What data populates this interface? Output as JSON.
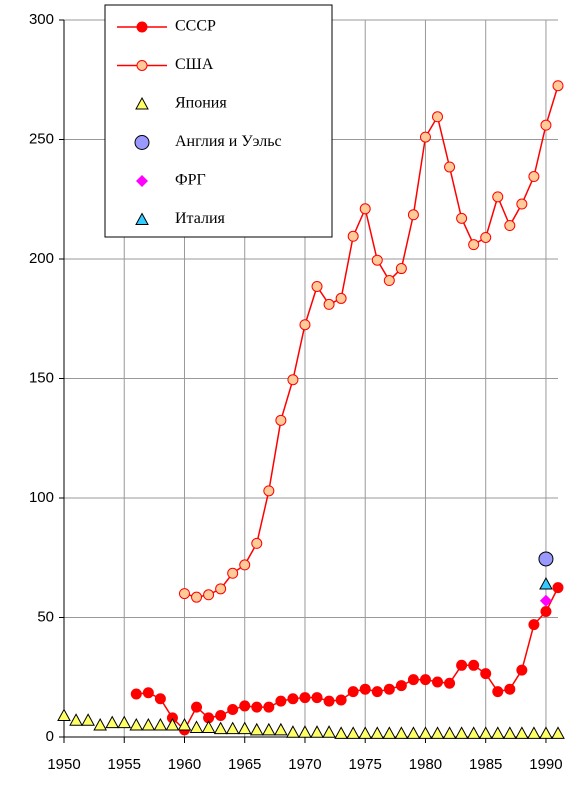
{
  "chart_data": {
    "type": "line",
    "xlim": [
      1950,
      1991
    ],
    "ylim": [
      0,
      300
    ],
    "xticks": [
      1950,
      1955,
      1960,
      1965,
      1970,
      1975,
      1980,
      1985,
      1990
    ],
    "yticks": [
      0,
      50,
      100,
      150,
      200,
      250,
      300
    ],
    "grid": true,
    "legend": "upper left",
    "series": [
      {
        "name": "СССР",
        "color": "#ff0000",
        "fill": "#ff0000",
        "marker": "circle",
        "line": true,
        "x": [
          1956,
          1957,
          1958,
          1959,
          1960,
          1961,
          1962,
          1963,
          1964,
          1965,
          1966,
          1967,
          1968,
          1969,
          1970,
          1971,
          1972,
          1973,
          1974,
          1975,
          1976,
          1977,
          1978,
          1979,
          1980,
          1981,
          1982,
          1983,
          1984,
          1985,
          1986,
          1987,
          1988,
          1989,
          1990,
          1991
        ],
        "values": [
          18,
          18.5,
          16,
          8,
          3,
          12.5,
          8,
          9,
          11.5,
          13,
          12.5,
          12.5,
          15,
          16,
          16.5,
          16.5,
          15,
          15.5,
          19,
          20,
          19,
          20,
          21.5,
          24,
          24,
          23,
          22.5,
          30,
          30,
          26.5,
          19,
          20,
          28,
          47,
          52.5,
          62.5
        ]
      },
      {
        "name": "США",
        "color": "#ff0000",
        "fill": "#ffcc99",
        "marker": "circle",
        "line": true,
        "x": [
          1960,
          1961,
          1962,
          1963,
          1964,
          1965,
          1966,
          1967,
          1968,
          1969,
          1970,
          1971,
          1972,
          1973,
          1974,
          1975,
          1976,
          1977,
          1978,
          1979,
          1980,
          1981,
          1982,
          1983,
          1984,
          1985,
          1986,
          1987,
          1988,
          1989,
          1990,
          1991
        ],
        "values": [
          60,
          58.5,
          59.5,
          62,
          68.5,
          72,
          81,
          103,
          132.5,
          149.5,
          172.5,
          188.5,
          181,
          183.5,
          209.5,
          221,
          199.5,
          191,
          196,
          218.5,
          251,
          259.5,
          238.5,
          217,
          206,
          209,
          226,
          214,
          223,
          234.5,
          256,
          272.5
        ]
      },
      {
        "name": "Япония",
        "color": "#333300",
        "fill": "#ffff66",
        "marker": "triangle",
        "line": false,
        "x": [
          1950,
          1951,
          1952,
          1953,
          1954,
          1955,
          1956,
          1957,
          1958,
          1959,
          1960,
          1961,
          1962,
          1963,
          1964,
          1965,
          1966,
          1967,
          1968,
          1969,
          1970,
          1971,
          1972,
          1973,
          1974,
          1975,
          1976,
          1977,
          1978,
          1979,
          1980,
          1981,
          1982,
          1983,
          1984,
          1985,
          1986,
          1987,
          1988,
          1989,
          1990,
          1991
        ],
        "values": [
          9,
          7,
          7,
          5,
          6,
          6,
          5,
          5,
          5,
          5,
          5,
          4,
          4,
          3.5,
          3.5,
          3.5,
          3,
          3,
          3,
          2,
          2,
          2,
          2,
          1.5,
          1.5,
          1.5,
          1.5,
          1.5,
          1.5,
          1.5,
          1.5,
          1.5,
          1.5,
          1.5,
          1.5,
          1.5,
          1.5,
          1.5,
          1.5,
          1.5,
          1.5,
          1.5
        ]
      },
      {
        "name": "Англия и Уэльс",
        "color": "#333333",
        "fill": "#9999ff",
        "marker": "bigcircle",
        "line": false,
        "x": [
          1990
        ],
        "values": [
          74.5
        ]
      },
      {
        "name": "ФРГ",
        "color": "#ff00ff",
        "fill": "#ff00ff",
        "marker": "diamond",
        "line": false,
        "x": [
          1990
        ],
        "values": [
          57
        ]
      },
      {
        "name": "Италия",
        "color": "#000000",
        "fill": "#33ccff",
        "marker": "triangle",
        "line": false,
        "x": [
          1990
        ],
        "values": [
          64
        ]
      }
    ]
  }
}
